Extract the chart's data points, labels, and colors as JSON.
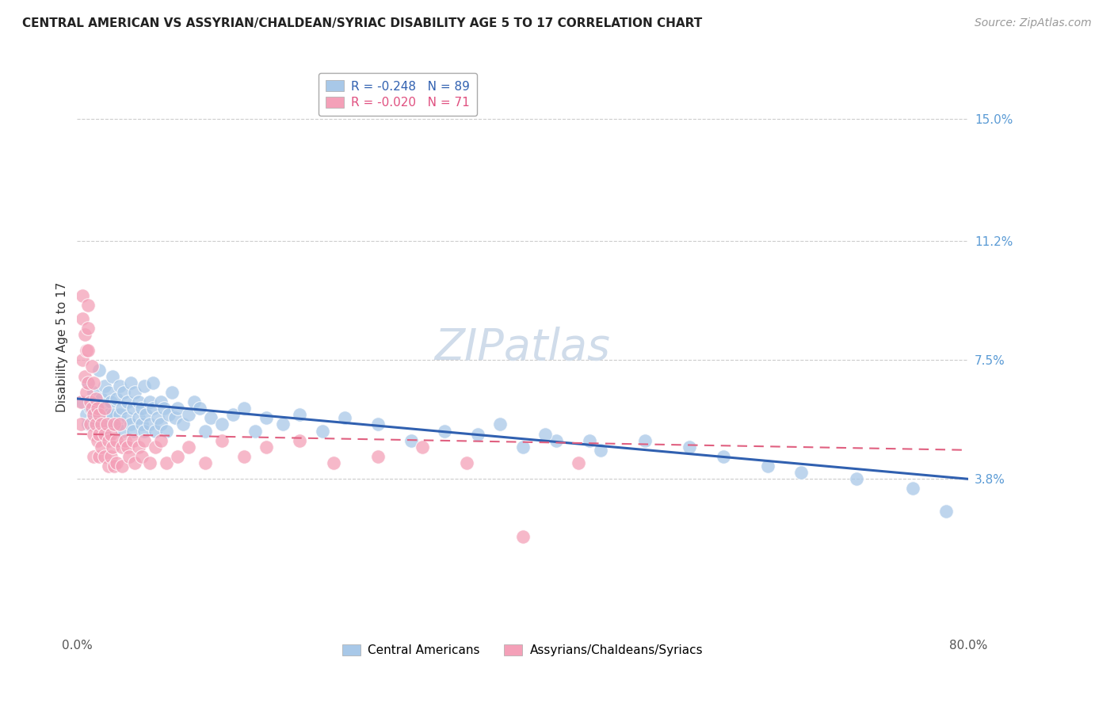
{
  "title": "CENTRAL AMERICAN VS ASSYRIAN/CHALDEAN/SYRIAC DISABILITY AGE 5 TO 17 CORRELATION CHART",
  "source": "Source: ZipAtlas.com",
  "ylabel": "Disability Age 5 to 17",
  "ytick_labels": [
    "15.0%",
    "11.2%",
    "7.5%",
    "3.8%"
  ],
  "ytick_values": [
    0.15,
    0.112,
    0.075,
    0.038
  ],
  "xlim": [
    0.0,
    0.8
  ],
  "ylim": [
    -0.01,
    0.168
  ],
  "blue_R": -0.248,
  "blue_N": 89,
  "pink_R": -0.02,
  "pink_N": 71,
  "blue_color": "#a8c8e8",
  "pink_color": "#f4a0b8",
  "blue_line_color": "#3060b0",
  "pink_line_color": "#e06080",
  "watermark": "ZIPatlas",
  "legend_label_blue": "Central Americans",
  "legend_label_pink": "Assyrians/Chaldeans/Syriacs",
  "blue_scatter_x": [
    0.005,
    0.008,
    0.01,
    0.01,
    0.012,
    0.015,
    0.015,
    0.018,
    0.02,
    0.02,
    0.022,
    0.022,
    0.025,
    0.025,
    0.025,
    0.028,
    0.028,
    0.03,
    0.03,
    0.032,
    0.032,
    0.035,
    0.035,
    0.038,
    0.038,
    0.04,
    0.04,
    0.042,
    0.045,
    0.045,
    0.048,
    0.048,
    0.05,
    0.05,
    0.052,
    0.055,
    0.055,
    0.058,
    0.058,
    0.06,
    0.06,
    0.062,
    0.065,
    0.065,
    0.068,
    0.068,
    0.07,
    0.072,
    0.075,
    0.075,
    0.078,
    0.08,
    0.082,
    0.085,
    0.088,
    0.09,
    0.095,
    0.1,
    0.105,
    0.11,
    0.115,
    0.12,
    0.13,
    0.14,
    0.15,
    0.16,
    0.17,
    0.185,
    0.2,
    0.22,
    0.24,
    0.27,
    0.3,
    0.33,
    0.36,
    0.4,
    0.43,
    0.47,
    0.51,
    0.55,
    0.58,
    0.62,
    0.65,
    0.7,
    0.75,
    0.78,
    0.38,
    0.42,
    0.46
  ],
  "blue_scatter_y": [
    0.062,
    0.058,
    0.068,
    0.055,
    0.06,
    0.065,
    0.057,
    0.062,
    0.058,
    0.072,
    0.055,
    0.063,
    0.06,
    0.067,
    0.053,
    0.058,
    0.065,
    0.055,
    0.062,
    0.058,
    0.07,
    0.055,
    0.063,
    0.058,
    0.067,
    0.06,
    0.053,
    0.065,
    0.057,
    0.062,
    0.055,
    0.068,
    0.06,
    0.053,
    0.065,
    0.057,
    0.062,
    0.055,
    0.06,
    0.067,
    0.053,
    0.058,
    0.062,
    0.055,
    0.06,
    0.068,
    0.053,
    0.057,
    0.062,
    0.055,
    0.06,
    0.053,
    0.058,
    0.065,
    0.057,
    0.06,
    0.055,
    0.058,
    0.062,
    0.06,
    0.053,
    0.057,
    0.055,
    0.058,
    0.06,
    0.053,
    0.057,
    0.055,
    0.058,
    0.053,
    0.057,
    0.055,
    0.05,
    0.053,
    0.052,
    0.048,
    0.05,
    0.047,
    0.05,
    0.048,
    0.045,
    0.042,
    0.04,
    0.038,
    0.035,
    0.028,
    0.055,
    0.052,
    0.05
  ],
  "pink_scatter_x": [
    0.003,
    0.003,
    0.005,
    0.005,
    0.005,
    0.007,
    0.007,
    0.008,
    0.008,
    0.01,
    0.01,
    0.01,
    0.01,
    0.012,
    0.012,
    0.013,
    0.013,
    0.015,
    0.015,
    0.015,
    0.015,
    0.017,
    0.017,
    0.018,
    0.018,
    0.02,
    0.02,
    0.02,
    0.022,
    0.022,
    0.025,
    0.025,
    0.025,
    0.027,
    0.028,
    0.028,
    0.03,
    0.03,
    0.032,
    0.033,
    0.033,
    0.035,
    0.035,
    0.038,
    0.04,
    0.04,
    0.043,
    0.045,
    0.047,
    0.05,
    0.052,
    0.055,
    0.058,
    0.06,
    0.065,
    0.07,
    0.075,
    0.08,
    0.09,
    0.1,
    0.115,
    0.13,
    0.15,
    0.17,
    0.2,
    0.23,
    0.27,
    0.31,
    0.35,
    0.4,
    0.45
  ],
  "pink_scatter_y": [
    0.062,
    0.055,
    0.095,
    0.088,
    0.075,
    0.083,
    0.07,
    0.078,
    0.065,
    0.092,
    0.085,
    0.078,
    0.068,
    0.062,
    0.055,
    0.073,
    0.06,
    0.068,
    0.058,
    0.052,
    0.045,
    0.063,
    0.055,
    0.06,
    0.05,
    0.058,
    0.052,
    0.045,
    0.055,
    0.048,
    0.052,
    0.06,
    0.045,
    0.055,
    0.05,
    0.042,
    0.052,
    0.045,
    0.048,
    0.055,
    0.042,
    0.05,
    0.043,
    0.055,
    0.048,
    0.042,
    0.05,
    0.048,
    0.045,
    0.05,
    0.043,
    0.048,
    0.045,
    0.05,
    0.043,
    0.048,
    0.05,
    0.043,
    0.045,
    0.048,
    0.043,
    0.05,
    0.045,
    0.048,
    0.05,
    0.043,
    0.045,
    0.048,
    0.043,
    0.02,
    0.043
  ],
  "grid_color": "#cccccc",
  "background_color": "#ffffff",
  "title_fontsize": 11,
  "axis_label_fontsize": 11,
  "tick_fontsize": 11,
  "source_fontsize": 10,
  "watermark_fontsize": 40,
  "watermark_color": "#d0dcea",
  "blue_line_x_start": 0.0,
  "blue_line_x_end": 0.8,
  "blue_line_y_start": 0.063,
  "blue_line_y_end": 0.038,
  "pink_line_x_start": 0.0,
  "pink_line_x_end": 0.8,
  "pink_line_y_start": 0.052,
  "pink_line_y_end": 0.047,
  "xtick_positions": [
    0.0,
    0.8
  ],
  "xtick_labels": [
    "0.0%",
    "80.0%"
  ]
}
